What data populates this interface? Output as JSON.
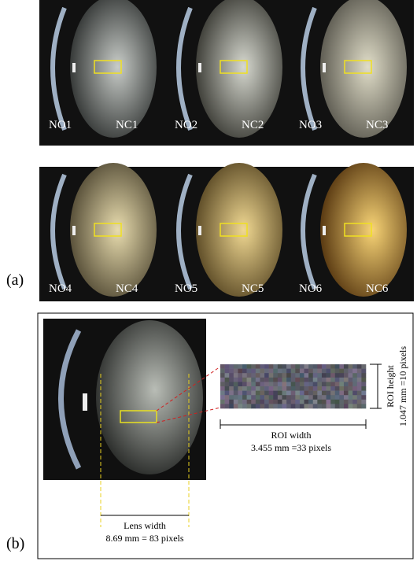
{
  "panel_a": {
    "label": "(a)",
    "images": [
      {
        "no": "NO1",
        "nc": "NC1"
      },
      {
        "no": "NO2",
        "nc": "NC2"
      },
      {
        "no": "NO3",
        "nc": "NC3"
      },
      {
        "no": "NO4",
        "nc": "NC4"
      },
      {
        "no": "NO5",
        "nc": "NC5"
      },
      {
        "no": "NO6",
        "nc": "NC6"
      }
    ]
  },
  "panel_b": {
    "label": "(b)",
    "lens_width": {
      "title": "Lens width",
      "value": "8.69 mm = 83 pixels"
    },
    "roi_width": {
      "title": "ROI width",
      "value": "3.455 mm =33 pixels"
    },
    "roi_height": {
      "title": "ROI height",
      "value": "1.047 mm =10 pixels"
    }
  }
}
